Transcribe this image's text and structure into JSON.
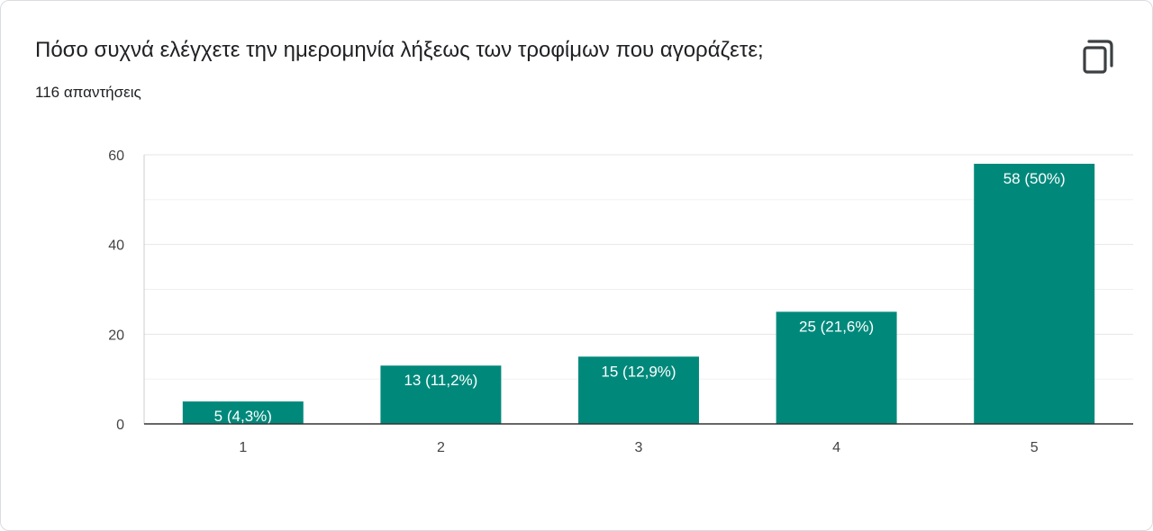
{
  "header": {
    "title": "Πόσο συχνά ελέγχετε την ημερομηνία λήξεως των τροφίμων που αγοράζετε;",
    "subtitle": "116 απαντήσεις",
    "copy_icon": "copy-icon"
  },
  "colors": {
    "bar": "#00897b",
    "grid": "#e6e6e6",
    "axis": "#333333"
  },
  "chart_data": {
    "type": "bar",
    "title": "Πόσο συχνά ελέγχετε την ημερομηνία λήξεως των τροφίμων που αγοράζετε;",
    "xlabel": "",
    "ylabel": "",
    "categories": [
      "1",
      "2",
      "3",
      "4",
      "5"
    ],
    "values": [
      5,
      13,
      15,
      25,
      58
    ],
    "data_labels": [
      "5 (4,3%)",
      "13 (11,2%)",
      "15 (12,9%)",
      "25 (21,6%)",
      "58 (50%)"
    ],
    "ylim": [
      0,
      60
    ],
    "yticks": [
      0,
      20,
      40,
      60
    ],
    "grid": true,
    "legend": "none"
  }
}
